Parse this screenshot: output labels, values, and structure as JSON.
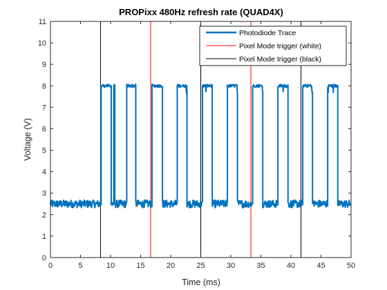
{
  "chart_data": {
    "type": "line",
    "title": "PROPixx 480Hz refresh rate (QUAD4X)",
    "xlabel": "Time (ms)",
    "ylabel": "Voltage (V)",
    "xlim": [
      0,
      50
    ],
    "ylim": [
      0,
      11
    ],
    "xticks": [
      0,
      5,
      10,
      15,
      20,
      25,
      30,
      35,
      40,
      45,
      50
    ],
    "yticks": [
      0,
      1,
      2,
      3,
      4,
      5,
      6,
      7,
      8,
      9,
      10,
      11
    ],
    "grid": false,
    "legend_position": "top-right",
    "series": [
      {
        "name": "Photodiode Trace",
        "color": "#0072BD",
        "kind": "trace",
        "baseline_v": 2.5,
        "high_v": 8.0,
        "pulses_ms": [
          [
            8.4,
            10.1
          ],
          [
            10.5,
            10.7
          ],
          [
            12.7,
            14.2
          ],
          [
            16.9,
            18.6
          ],
          [
            21.1,
            22.7
          ],
          [
            25.3,
            26.9
          ],
          [
            29.4,
            31.1
          ],
          [
            33.6,
            35.3
          ],
          [
            37.8,
            39.5
          ],
          [
            42.0,
            43.6
          ],
          [
            46.1,
            47.8
          ]
        ]
      },
      {
        "name": "Pixel Mode trigger (white)",
        "color": "#FF0000",
        "kind": "vline",
        "x": [
          0,
          16.67,
          33.33
        ]
      },
      {
        "name": "Pixel Mode trigger (black)",
        "color": "#000000",
        "kind": "vline",
        "x": [
          8.33,
          25.0,
          41.67
        ]
      }
    ]
  }
}
